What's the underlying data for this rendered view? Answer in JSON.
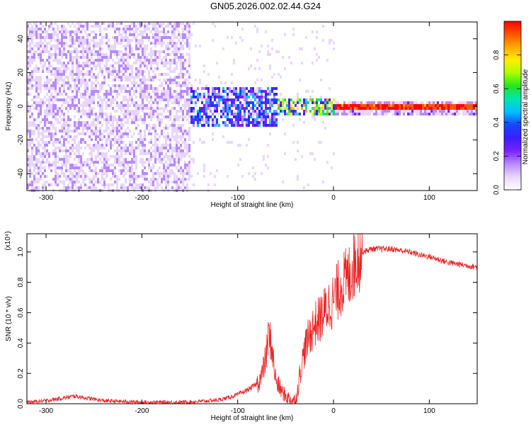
{
  "title": "GN05.2026.002.02.44.G24",
  "colors": {
    "line": "#ee2222",
    "colormap": [
      "#ffffff",
      "#e8d6ff",
      "#b88aff",
      "#7a22ff",
      "#3b1eff",
      "#1546ff",
      "#00bfff",
      "#00e6b0",
      "#22e622",
      "#aaff00",
      "#ffee00",
      "#ffaa00",
      "#ff5500",
      "#ff0000"
    ]
  },
  "chart_data": [
    {
      "type": "heatmap",
      "xlabel": "Height of straight line (km)",
      "ylabel": "Frequency (Hz)",
      "xlim": [
        -320,
        150
      ],
      "ylim": [
        -50,
        50
      ],
      "xticks": [
        -300,
        -200,
        -100,
        0,
        100
      ],
      "yticks": [
        -40,
        -20,
        0,
        20,
        40
      ],
      "colorbar": {
        "label": "Normalized spectral amplitude",
        "range": [
          0,
          1
        ],
        "ticks": [
          0.0,
          0.2,
          0.4,
          0.6,
          0.8
        ]
      },
      "regions": [
        {
          "x": [
            -320,
            -150
          ],
          "freq": [
            -50,
            50
          ],
          "amplitude": 0.15,
          "description": "diffuse scatter"
        },
        {
          "x": [
            -150,
            -60
          ],
          "freq": [
            -12,
            12
          ],
          "amplitude": 0.4,
          "description": "band"
        },
        {
          "x": [
            -60,
            0
          ],
          "freq": [
            -5,
            5
          ],
          "amplitude": 0.7,
          "description": "narrowing band"
        },
        {
          "x": [
            0,
            150
          ],
          "freq": [
            0,
            0
          ],
          "amplitude": 1.0,
          "description": "constant line"
        }
      ]
    },
    {
      "type": "line",
      "xlabel": "Height of straight line (km)",
      "ylabel": "SNR (10 * v/v)",
      "scale_label": "(x10⁴)",
      "xlim": [
        -320,
        150
      ],
      "ylim": [
        0,
        1.12
      ],
      "xticks": [
        -300,
        -200,
        -100,
        0,
        100
      ],
      "yticks": [
        0.0,
        0.2,
        0.4,
        0.6,
        0.8,
        1.0
      ],
      "ytick_labels": [
        "0.0",
        "0.2",
        "0.4",
        "0.6",
        "0.8",
        "1.0"
      ],
      "x": [
        -320,
        -300,
        -280,
        -270,
        -260,
        -240,
        -220,
        -200,
        -180,
        -160,
        -140,
        -130,
        -120,
        -110,
        -100,
        -90,
        -80,
        -75,
        -70,
        -68,
        -65,
        -62,
        -60,
        -55,
        -50,
        -45,
        -40,
        -38,
        -35,
        -30,
        -25,
        -20,
        -15,
        -10,
        -5,
        0,
        5,
        10,
        15,
        20,
        25,
        30,
        40,
        50,
        60,
        70,
        80,
        90,
        100,
        110,
        120,
        130,
        140,
        150
      ],
      "y": [
        0.01,
        0.02,
        0.04,
        0.05,
        0.04,
        0.02,
        0.015,
        0.01,
        0.01,
        0.01,
        0.015,
        0.02,
        0.025,
        0.04,
        0.06,
        0.09,
        0.13,
        0.18,
        0.32,
        0.45,
        0.4,
        0.24,
        0.15,
        0.09,
        0.05,
        0.03,
        0.02,
        0.06,
        0.2,
        0.36,
        0.45,
        0.52,
        0.55,
        0.6,
        0.65,
        0.68,
        0.75,
        0.8,
        0.82,
        0.9,
        0.98,
        1.0,
        1.02,
        1.02,
        1.02,
        1.01,
        1.0,
        0.98,
        0.97,
        0.95,
        0.93,
        0.92,
        0.91,
        0.9
      ]
    }
  ]
}
